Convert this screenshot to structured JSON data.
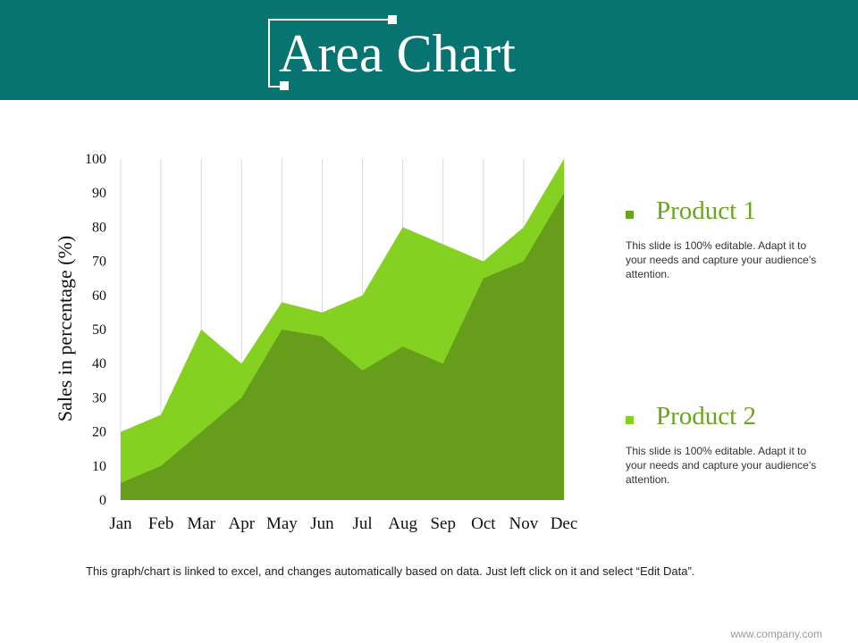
{
  "header": {
    "title": "Area Chart",
    "accent_color": "#077472"
  },
  "legend": [
    {
      "name": "Product 1",
      "color": "#6aa521",
      "description": "This slide is 100% editable. Adapt it to your needs and capture your audience’s attention."
    },
    {
      "name": "Product 2",
      "color": "#84d122",
      "description": "This slide is 100% editable. Adapt it to your needs and capture your audience’s attention."
    }
  ],
  "chart_data": {
    "type": "area",
    "title": "",
    "xlabel": "",
    "ylabel": "Sales in percentage (%)",
    "ylim": [
      0,
      100
    ],
    "y_ticks": [
      "0",
      "10",
      "20",
      "30",
      "40",
      "50",
      "60",
      "70",
      "80",
      "90",
      "100"
    ],
    "categories": [
      "Jan",
      "Feb",
      "Mar",
      "Apr",
      "May",
      "Jun",
      "Jul",
      "Aug",
      "Sep",
      "Oct",
      "Nov",
      "Dec"
    ],
    "stacked": false,
    "grid": "vertical",
    "series": [
      {
        "name": "Product 2",
        "color": "#84d122",
        "values": [
          20,
          25,
          50,
          40,
          58,
          55,
          60,
          80,
          75,
          70,
          80,
          100
        ]
      },
      {
        "name": "Product 1",
        "color": "#669e1c",
        "values": [
          5,
          10,
          20,
          30,
          50,
          48,
          38,
          45,
          40,
          65,
          70,
          90
        ]
      }
    ]
  },
  "footer": {
    "note": "This graph/chart is linked to excel, and changes automatically based on data. Just left click on it and select “Edit Data”.",
    "website": "www.company.com"
  }
}
